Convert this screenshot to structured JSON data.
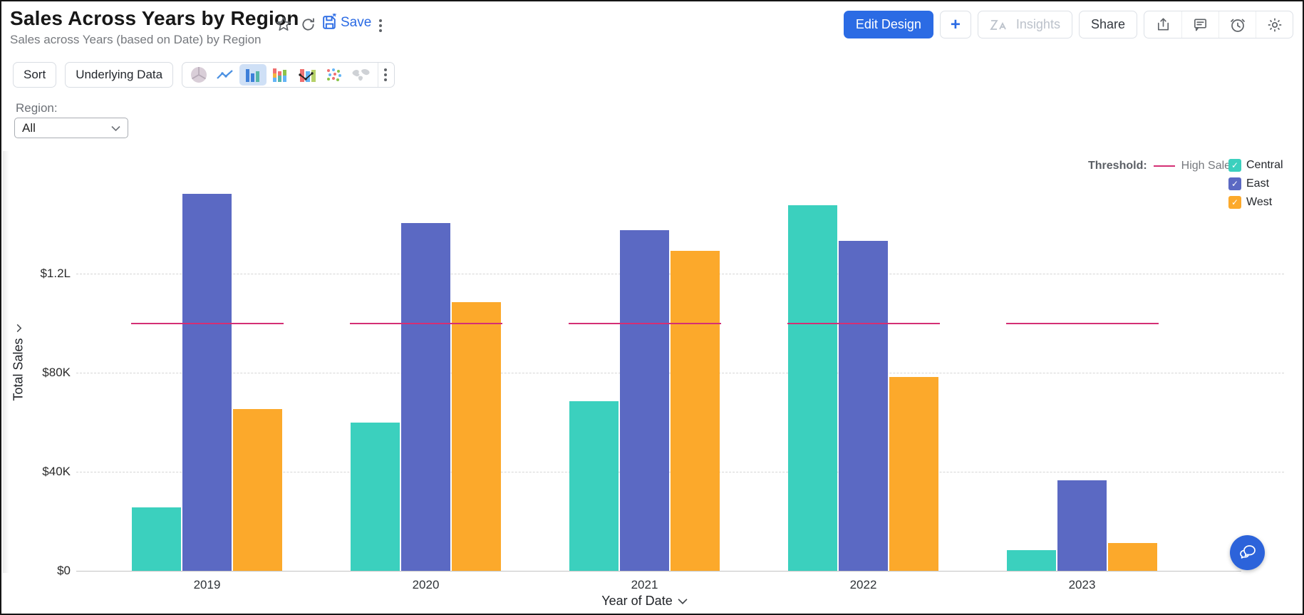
{
  "header": {
    "title": "Sales Across Years by Region",
    "subtitle": "Sales across Years (based on Date) by Region",
    "save_label": "Save",
    "edit_design_label": "Edit Design",
    "plus_label": "+",
    "insights_label": "Insights",
    "share_label": "Share"
  },
  "toolbar": {
    "sort_label": "Sort",
    "underlying_data_label": "Underlying Data",
    "chart_types": [
      "pie",
      "line",
      "bar",
      "stacked-bar",
      "bar-line-combo",
      "scatter",
      "world-map"
    ],
    "selected_chart_type": "bar"
  },
  "filter": {
    "label": "Region:",
    "value": "All"
  },
  "chart_data": {
    "type": "bar",
    "categories": [
      "2019",
      "2020",
      "2021",
      "2022",
      "2023"
    ],
    "series": [
      {
        "name": "Central",
        "color": "#3bd0be",
        "values": [
          25600,
          60000,
          68500,
          147500,
          8300
        ]
      },
      {
        "name": "East",
        "color": "#5b69c3",
        "values": [
          152200,
          140400,
          137600,
          133200,
          36500
        ]
      },
      {
        "name": "West",
        "color": "#fca92b",
        "values": [
          65300,
          108500,
          129200,
          78300,
          11200
        ]
      }
    ],
    "xlabel": "Year of Date",
    "ylabel": "Total Sales",
    "ylim": [
      0,
      172000
    ],
    "yticks": [
      {
        "value": 0,
        "label": "$0"
      },
      {
        "value": 40000,
        "label": "$40K"
      },
      {
        "value": 80000,
        "label": "$80K"
      },
      {
        "value": 120000,
        "label": "$1.2L"
      }
    ],
    "threshold": {
      "prefix": "Threshold:",
      "label": "High Sales",
      "value": 100000,
      "color": "#d42f74"
    },
    "legend_position": "top-right",
    "grid": "horizontal-dashed"
  },
  "colors": {
    "accent": "#2b6be4"
  }
}
